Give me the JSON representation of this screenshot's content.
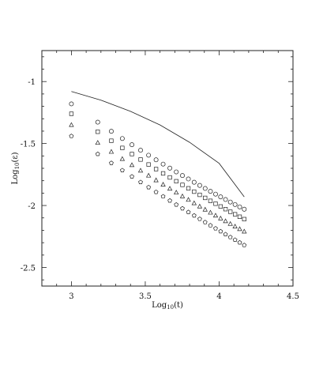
{
  "chart_data": {
    "type": "scatter",
    "title": "",
    "xlabel": {
      "base": "Log",
      "sub": "10",
      "rest": "(t)"
    },
    "ylabel": {
      "base": "Log",
      "sub": "10",
      "rest": "(ε)"
    },
    "xlim": [
      2.8,
      4.5
    ],
    "ylim": [
      -2.65,
      -0.75
    ],
    "x_ticks": [
      3,
      3.5,
      4,
      4.5
    ],
    "x_tick_labels": [
      "3",
      "3.5",
      "4",
      "4.5"
    ],
    "y_ticks": [
      -1,
      -1.5,
      -2,
      -2.5
    ],
    "y_tick_labels": [
      "-1",
      "-1.5",
      "-2",
      "-2.5"
    ],
    "grid": false,
    "line": {
      "x": [
        3.0,
        3.2,
        3.4,
        3.6,
        3.8,
        4.0,
        4.17
      ],
      "y": [
        -1.08,
        -1.15,
        -1.24,
        -1.35,
        -1.49,
        -1.66,
        -1.93
      ]
    },
    "series": [
      {
        "marker": "circle",
        "x_start": 3.0,
        "x_end": 4.17,
        "n": 24,
        "y_start": -1.18,
        "y_end": -2.03,
        "curve": -0.14
      },
      {
        "marker": "square",
        "x_start": 3.0,
        "x_end": 4.17,
        "n": 24,
        "y_start": -1.26,
        "y_end": -2.11,
        "curve": -0.12
      },
      {
        "marker": "triangle",
        "x_start": 3.0,
        "x_end": 4.17,
        "n": 24,
        "y_start": -1.35,
        "y_end": -2.21,
        "curve": -0.1
      },
      {
        "marker": "pentagon",
        "x_start": 3.0,
        "x_end": 4.17,
        "n": 24,
        "y_start": -1.44,
        "y_end": -2.32,
        "curve": -0.08
      }
    ]
  }
}
